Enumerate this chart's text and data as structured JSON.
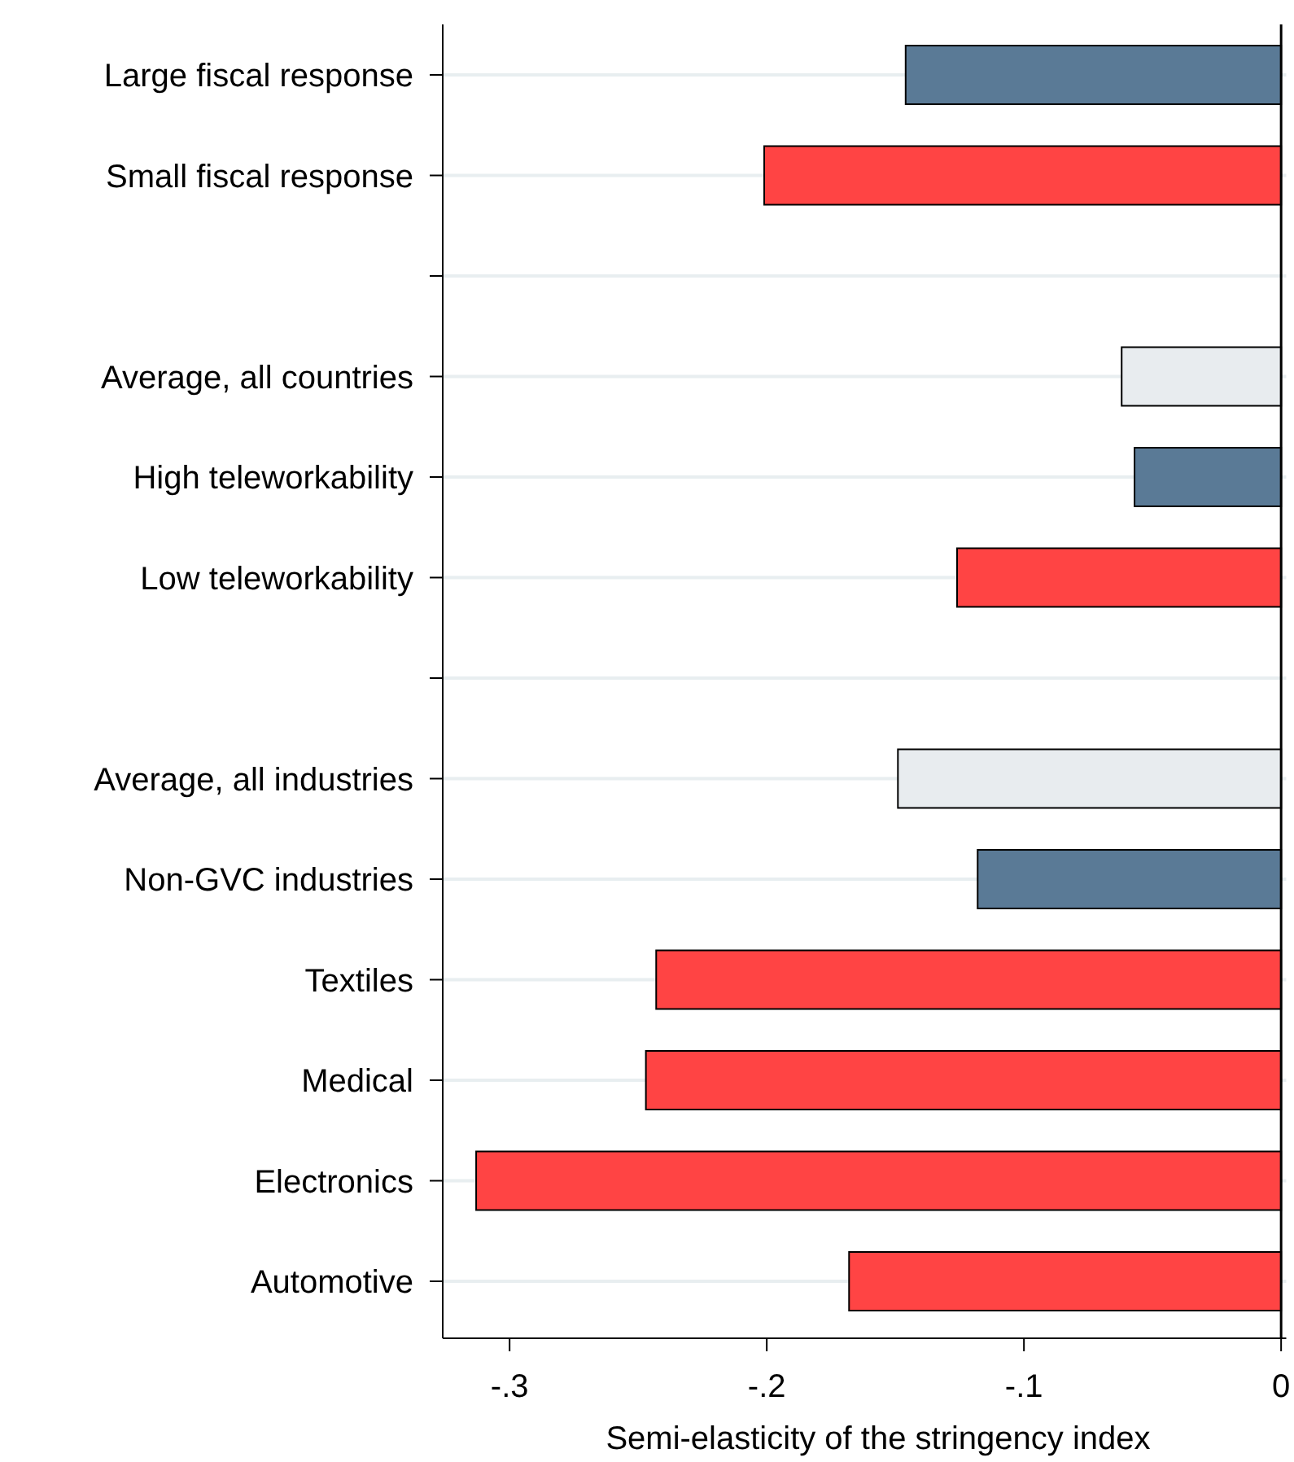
{
  "chart_data": {
    "type": "bar",
    "orientation": "horizontal",
    "xlabel": "Semi-elasticity of the stringency index",
    "categories": [
      "Large fiscal response",
      "Small fiscal response",
      null,
      "Average, all countries",
      "High teleworkability",
      "Low teleworkability",
      null,
      "Average, all industries",
      "Non-GVC industries",
      "Textiles",
      "Medical",
      "Electronics",
      "Automotive"
    ],
    "values": [
      -0.146,
      -0.201,
      null,
      -0.062,
      -0.057,
      -0.126,
      null,
      -0.149,
      -0.118,
      -0.243,
      -0.247,
      -0.313,
      -0.168
    ],
    "colors": [
      "#5a7a96",
      "#ff4444",
      null,
      "#e8ecef",
      "#5a7a96",
      "#ff4444",
      null,
      "#e8ecef",
      "#5a7a96",
      "#ff4444",
      "#ff4444",
      "#ff4444",
      "#ff4444"
    ],
    "xlim": [
      -0.326,
      0.002
    ],
    "xticks": [
      {
        "value": -0.3,
        "label": "-.3"
      },
      {
        "value": -0.2,
        "label": "-.2"
      },
      {
        "value": -0.1,
        "label": "-.1"
      },
      0
    ],
    "ref_lines": [
      {
        "axis": "x",
        "value": 0,
        "color": "#000000"
      }
    ],
    "grid": "y"
  }
}
